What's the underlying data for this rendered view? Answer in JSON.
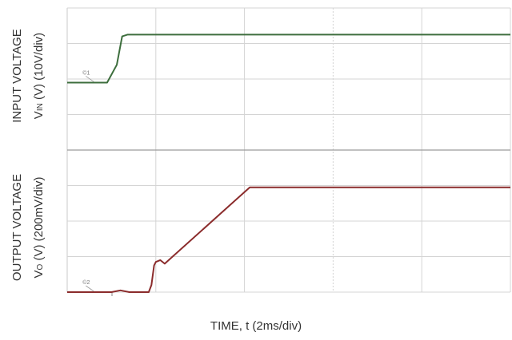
{
  "chart_data": {
    "type": "line",
    "title": "",
    "xlabel": "TIME, t (2ms/div)",
    "x_unit_per_div": "2ms/div",
    "x_divisions": 5,
    "panels": [
      {
        "name": "input",
        "ylabel_line1": "INPUT VOLTAGE",
        "ylabel_line2": {
          "main": "V",
          "sub": "IN",
          "rest": " (V) (10V/div)"
        },
        "y_divisions": 4,
        "marker": "©1",
        "color": "#3d6e3d",
        "series": {
          "x_div": [
            0,
            0.25,
            0.45,
            0.56,
            0.62,
            0.68,
            5
          ],
          "y_div": [
            1.9,
            1.9,
            1.9,
            2.4,
            3.2,
            3.25,
            3.25
          ]
        }
      },
      {
        "name": "output",
        "ylabel_line1": "OUTPUT VOLTAGE",
        "ylabel_line2": {
          "main": "V",
          "sub": "O",
          "rest": " (V) (200mV/div)"
        },
        "y_divisions": 4,
        "marker": "©2",
        "color": "#8b2c2c",
        "series": {
          "x_div": [
            0,
            0.5,
            0.6,
            0.7,
            0.92,
            0.95,
            0.98,
            1.0,
            1.05,
            1.1,
            2.06,
            5
          ],
          "y_div": [
            0.0,
            0.0,
            0.05,
            0.0,
            0.0,
            0.2,
            0.75,
            0.85,
            0.9,
            0.8,
            2.95,
            2.95
          ]
        }
      }
    ]
  }
}
